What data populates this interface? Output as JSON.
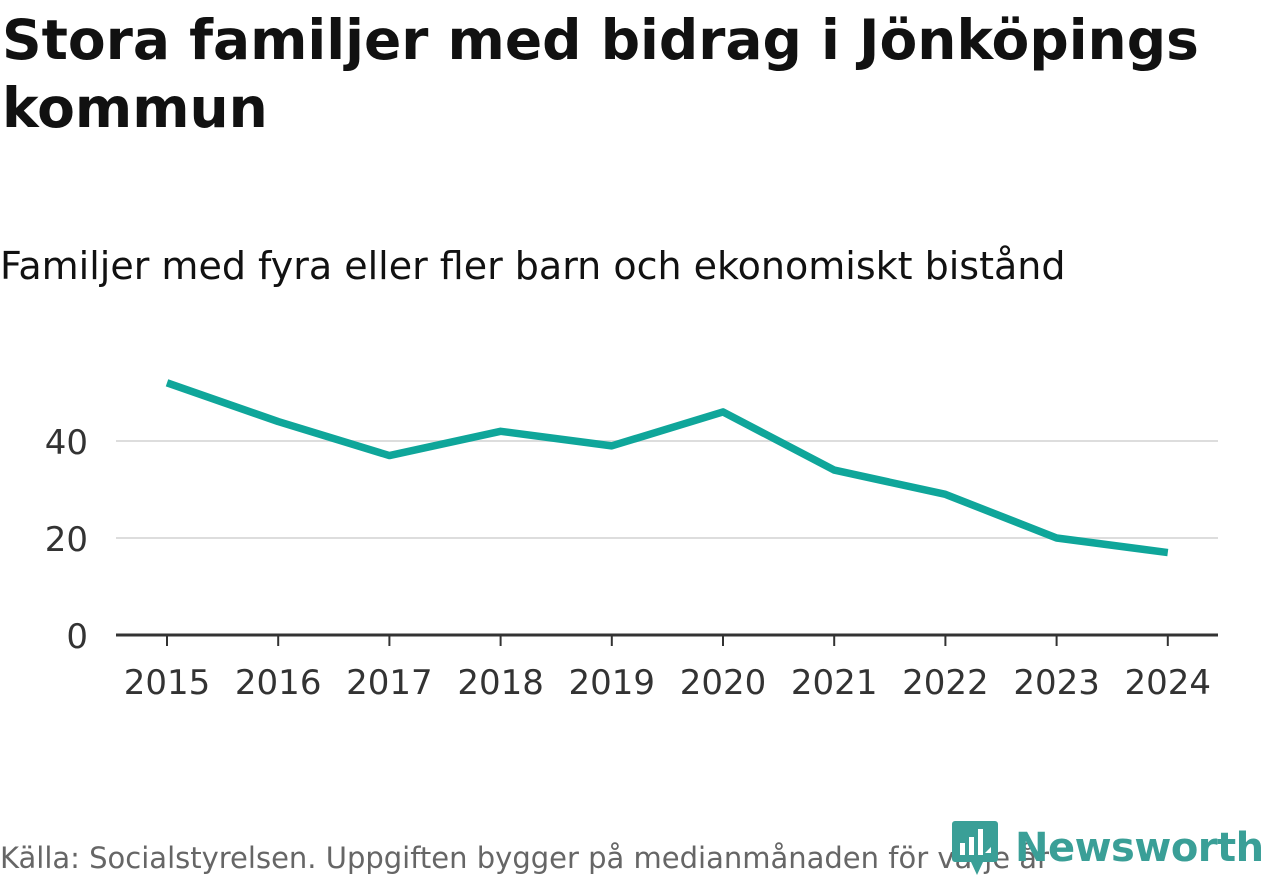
{
  "header": {
    "title": "Stora familjer med bidrag i Jönköpings kommun",
    "subtitle": "Familjer med fyra eller fler barn och ekonomiskt bistånd"
  },
  "footer": {
    "source": "Källa: Socialstyrelsen. Uppgiften bygger på medianmånaden för varje år",
    "brand": "Newsworthy"
  },
  "colors": {
    "line": "#0fa69a",
    "gridline": "#dddddd",
    "axis": "#333333",
    "brand": "#3a9f97"
  },
  "chart_data": {
    "type": "line",
    "title": "Stora familjer med bidrag i Jönköpings kommun",
    "subtitle": "Familjer med fyra eller fler barn och ekonomiskt bistånd",
    "xlabel": "",
    "ylabel": "",
    "categories": [
      "2015",
      "2016",
      "2017",
      "2018",
      "2019",
      "2020",
      "2021",
      "2022",
      "2023",
      "2024"
    ],
    "series": [
      {
        "name": "Familjer med fyra eller fler barn och ekonomiskt bistånd",
        "values": [
          52,
          44,
          37,
          42,
          39,
          46,
          34,
          29,
          20,
          17
        ]
      }
    ],
    "yticks": [
      0,
      20,
      40
    ],
    "ylim": [
      0,
      56
    ],
    "grid": true,
    "legend": "none"
  }
}
